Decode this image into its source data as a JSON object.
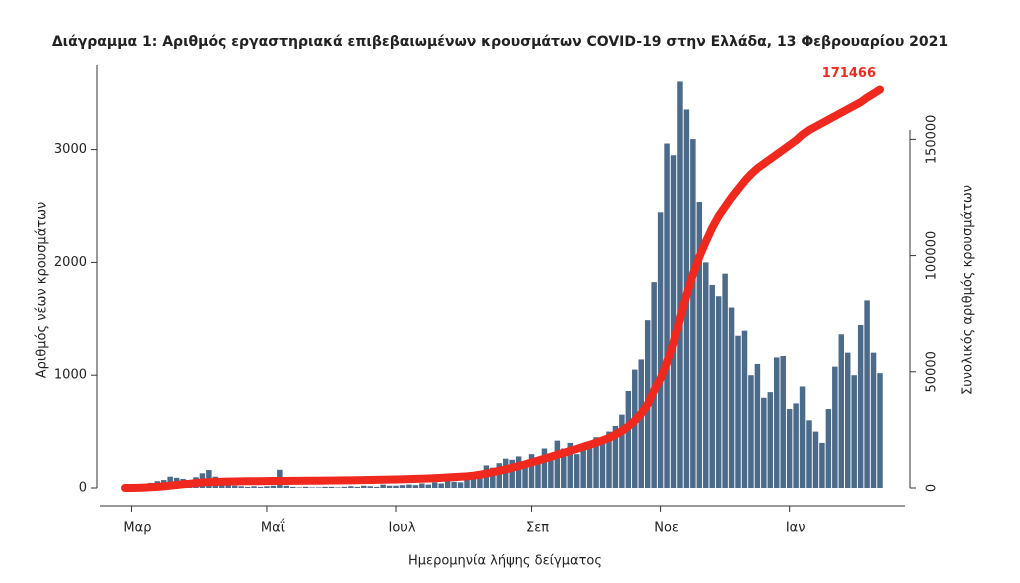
{
  "chart_data": {
    "type": "bar",
    "title": "Διάγραμμα 1: Αριθμός εργαστηριακά επιβεβαιωμένων κρουσμάτων COVID-19 στην Ελλάδα, 13 Φεβρουαρίου 2021",
    "x_label": "Ημερομηνία λήψης δείγματος",
    "y_label": "Αριθμός νέων κρουσμάτων",
    "y2_label": "Συνολικός αριθμός κρουσμάτων",
    "categories": [
      null,
      "Μαρ",
      null,
      null,
      null,
      null,
      null,
      null,
      null,
      null,
      null,
      null,
      null,
      null,
      null,
      null,
      null,
      null,
      null,
      null,
      null,
      null,
      "Μαΐ",
      null,
      null,
      null,
      null,
      null,
      null,
      null,
      null,
      null,
      null,
      null,
      null,
      null,
      null,
      null,
      null,
      null,
      null,
      null,
      "Ιουλ",
      null,
      null,
      null,
      null,
      null,
      null,
      null,
      null,
      null,
      null,
      null,
      null,
      null,
      null,
      null,
      null,
      null,
      null,
      null,
      null,
      "Σεπ",
      null,
      null,
      null,
      null,
      null,
      null,
      null,
      null,
      null,
      null,
      null,
      null,
      null,
      null,
      null,
      null,
      null,
      null,
      null,
      "Νοε",
      null,
      null,
      null,
      null,
      null,
      null,
      null,
      null,
      null,
      null,
      null,
      null,
      null,
      null,
      null,
      null,
      null,
      null,
      null,
      "Ιαν",
      null,
      null,
      null,
      null,
      null,
      null,
      null,
      null,
      null,
      null,
      null,
      null,
      null,
      null
    ],
    "series": [
      {
        "type": "bar",
        "axis": "y",
        "color": "#4c6a8a",
        "values": [
          0,
          2,
          10,
          30,
          45,
          60,
          70,
          100,
          90,
          80,
          70,
          95,
          130,
          159,
          100,
          50,
          40,
          20,
          15,
          10,
          15,
          10,
          15,
          20,
          161,
          20,
          10,
          5,
          10,
          5,
          5,
          10,
          10,
          5,
          10,
          15,
          10,
          20,
          15,
          10,
          30,
          20,
          20,
          25,
          30,
          25,
          40,
          30,
          50,
          40,
          60,
          55,
          50,
          80,
          100,
          150,
          200,
          180,
          220,
          260,
          250,
          280,
          230,
          300,
          250,
          350,
          300,
          420,
          350,
          400,
          300,
          350,
          380,
          450,
          400,
          500,
          550,
          650,
          860,
          1050,
          1140,
          1488,
          1825,
          2444,
          3054,
          2950,
          3604,
          3356,
          3093,
          2535,
          2000,
          1800,
          1700,
          1900,
          1600,
          1350,
          1395,
          1000,
          1100,
          800,
          850,
          1158,
          1170,
          700,
          750,
          900,
          600,
          500,
          400,
          700,
          1076,
          1363,
          1200,
          1000,
          1445,
          1663,
          1200,
          1018
        ]
      },
      {
        "type": "line",
        "axis": "y2",
        "color": "#f0281e",
        "label_last": true,
        "values": [
          0,
          7,
          50,
          150,
          300,
          500,
          700,
          1000,
          1300,
          1600,
          1800,
          2100,
          2400,
          2500,
          2600,
          2700,
          2750,
          2800,
          2850,
          2880,
          2900,
          2920,
          2950,
          2990,
          3000,
          3030,
          3060,
          3080,
          3100,
          3120,
          3140,
          3170,
          3200,
          3230,
          3260,
          3300,
          3340,
          3390,
          3430,
          3470,
          3540,
          3590,
          3660,
          3730,
          3820,
          3900,
          4000,
          4100,
          4200,
          4350,
          4500,
          4700,
          4850,
          5000,
          5300,
          5700,
          6200,
          6800,
          7400,
          8000,
          8700,
          9400,
          10200,
          11000,
          11800,
          12600,
          13400,
          14300,
          15100,
          16000,
          16800,
          17700,
          18600,
          19500,
          20500,
          21500,
          23000,
          24500,
          26500,
          29000,
          32000,
          36000,
          42000,
          47000,
          54000,
          62500,
          73000,
          83000,
          92000,
          99500,
          106000,
          112000,
          117000,
          121000,
          125000,
          128500,
          132000,
          135000,
          137500,
          139500,
          141500,
          143500,
          145500,
          147500,
          149500,
          152000,
          154000,
          155500,
          157000,
          158500,
          160000,
          161500,
          163000,
          164500,
          166000,
          168000,
          169700,
          171466
        ]
      }
    ],
    "ylim": [
      0,
      3750
    ],
    "yticks": [
      0,
      1000,
      2000,
      3000
    ],
    "y2lim": [
      0,
      182000
    ],
    "y2ticks": [
      0,
      50000,
      100000,
      150000
    ]
  }
}
